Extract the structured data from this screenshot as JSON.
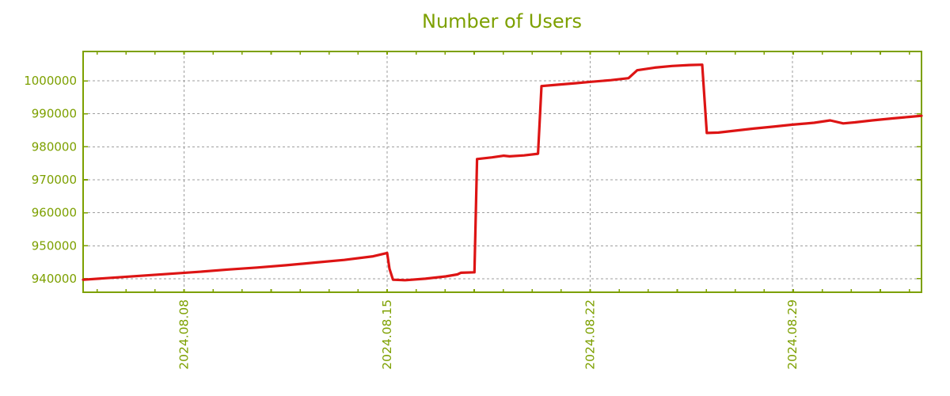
{
  "colors": {
    "accent": "#7da000",
    "line": "#dd1414",
    "grid": "#9e9e9e",
    "background": "#ffffff"
  },
  "chart_data": {
    "type": "line",
    "title": "Number of Users",
    "legend": false,
    "grid": true,
    "x_axis": {
      "unit": "days-from-left-edge",
      "range": [
        0,
        28.9
      ],
      "labels": [
        {
          "text": "2024.08.08",
          "day": 3.48
        },
        {
          "text": "2024.08.15",
          "day": 10.48
        },
        {
          "text": "2024.08.22",
          "day": 17.48
        },
        {
          "text": "2024.08.29",
          "day": 24.45
        }
      ],
      "minor_ticks": {
        "first_day": 0.48,
        "interval_days": 1,
        "count": 29
      }
    },
    "y_axis": {
      "range": [
        935900,
        1008900
      ],
      "ticks": [
        940000,
        950000,
        960000,
        970000,
        980000,
        990000,
        1000000
      ],
      "tick_labels": [
        "940000",
        "950000",
        "960000",
        "970000",
        "980000",
        "990000",
        "1000000"
      ]
    },
    "series": [
      {
        "name": "Number of Users",
        "color": "#dd1414",
        "points": [
          [
            0,
            939700
          ],
          [
            1,
            940300
          ],
          [
            2,
            940900
          ],
          [
            3,
            941500
          ],
          [
            4,
            942100
          ],
          [
            5,
            942800
          ],
          [
            6,
            943400
          ],
          [
            7,
            944100
          ],
          [
            8,
            944900
          ],
          [
            9,
            945700
          ],
          [
            10,
            946800
          ],
          [
            10.48,
            947800
          ],
          [
            10.56,
            943000
          ],
          [
            10.68,
            939700
          ],
          [
            11.1,
            939550
          ],
          [
            11.8,
            940000
          ],
          [
            12.5,
            940700
          ],
          [
            12.9,
            941300
          ],
          [
            13.02,
            941800
          ],
          [
            13.49,
            941950
          ],
          [
            13.58,
            976300
          ],
          [
            14.1,
            976800
          ],
          [
            14.5,
            977300
          ],
          [
            14.7,
            977100
          ],
          [
            15.2,
            977400
          ],
          [
            15.68,
            977900
          ],
          [
            15.8,
            998400
          ],
          [
            16.3,
            998800
          ],
          [
            17.0,
            999300
          ],
          [
            17.5,
            999700
          ],
          [
            18.2,
            1000200
          ],
          [
            18.8,
            1000800
          ],
          [
            19.1,
            1003200
          ],
          [
            19.7,
            1004000
          ],
          [
            20.3,
            1004500
          ],
          [
            20.9,
            1004800
          ],
          [
            21.34,
            1004900
          ],
          [
            21.5,
            984200
          ],
          [
            21.9,
            984300
          ],
          [
            22.5,
            984900
          ],
          [
            23.1,
            985500
          ],
          [
            23.8,
            986100
          ],
          [
            24.45,
            986700
          ],
          [
            25.2,
            987300
          ],
          [
            25.75,
            988000
          ],
          [
            26.2,
            987100
          ],
          [
            26.6,
            987400
          ],
          [
            27.2,
            988000
          ],
          [
            27.9,
            988600
          ],
          [
            28.5,
            989100
          ],
          [
            28.9,
            989400
          ]
        ]
      }
    ]
  }
}
